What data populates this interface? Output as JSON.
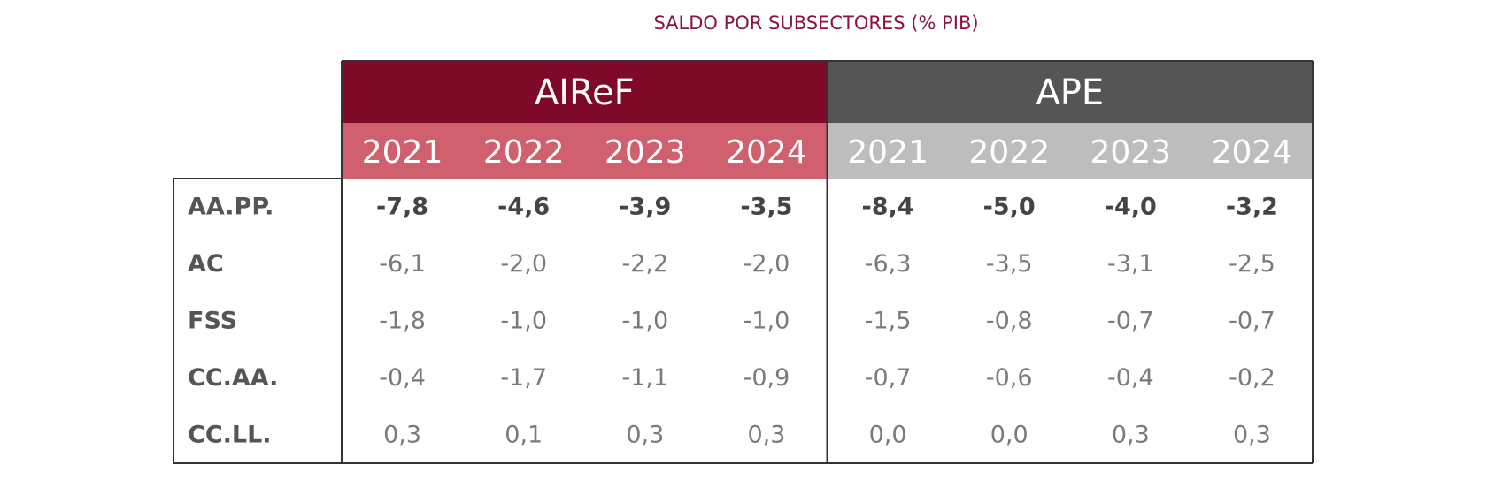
{
  "title": "SALDO POR SUBSECTORES (% PIB)",
  "groups": [
    {
      "name": "AIReF",
      "years": [
        "2021",
        "2022",
        "2023",
        "2024"
      ]
    },
    {
      "name": "APE",
      "years": [
        "2021",
        "2022",
        "2023",
        "2024"
      ]
    }
  ],
  "rows": [
    {
      "label": "AA.PP.",
      "values": [
        "-7,8",
        "-4,6",
        "-3,9",
        "-3,5",
        "-8,4",
        "-5,0",
        "-4,0",
        "-3,2"
      ]
    },
    {
      "label": "AC",
      "values": [
        "-6,1",
        "-2,0",
        "-2,2",
        "-2,0",
        "-6,3",
        "-3,5",
        "-3,1",
        "-2,5"
      ]
    },
    {
      "label": "FSS",
      "values": [
        "-1,8",
        "-1,0",
        "-1,0",
        "-1,0",
        "-1,5",
        "-0,8",
        "-0,7",
        "-0,7"
      ]
    },
    {
      "label": "CC.AA.",
      "values": [
        "-0,4",
        "-1,7",
        "-1,1",
        "-0,9",
        "-0,7",
        "-0,6",
        "-0,4",
        "-0,2"
      ]
    },
    {
      "label": "CC.LL.",
      "values": [
        "0,3",
        "0,1",
        "0,3",
        "0,3",
        "0,0",
        "0,0",
        "0,3",
        "0,3"
      ]
    }
  ]
}
